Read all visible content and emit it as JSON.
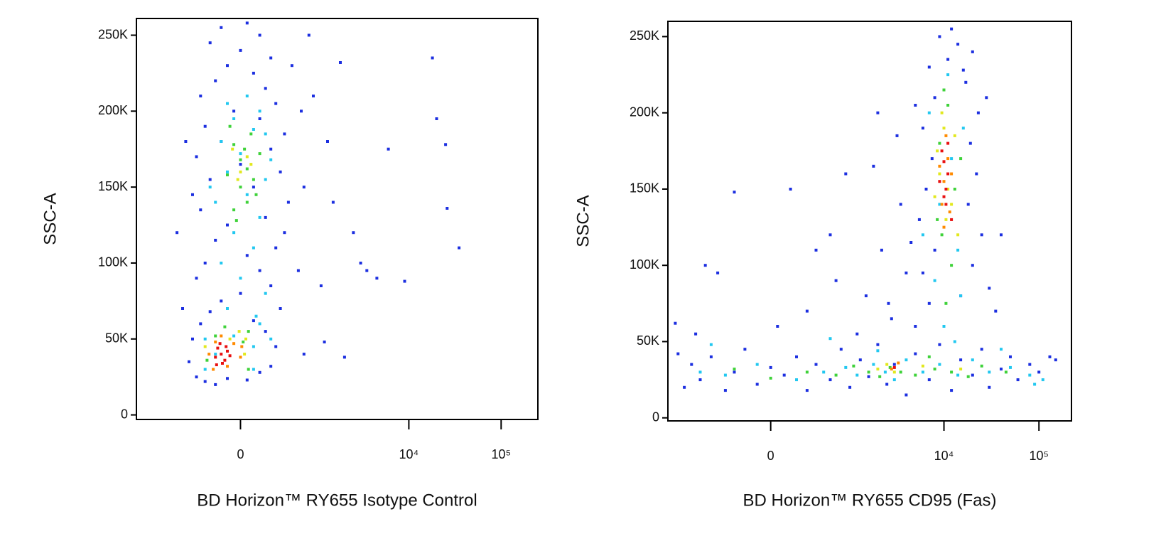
{
  "chart_data": [
    {
      "type": "scatter",
      "xscale": "biex",
      "x_label": "BD Horizon™ RY655 Isotype Control",
      "y_label": "SSC-A",
      "xlim": [
        -2000,
        250000
      ],
      "ylim": [
        -3000,
        261000
      ],
      "xticks": [
        0,
        {
          "value": 10000,
          "label": "10⁴"
        },
        {
          "value": 100000,
          "label": "10⁵"
        }
      ],
      "yticks": [
        0,
        {
          "value": 50000,
          "label": "50K"
        },
        {
          "value": 100000,
          "label": "100K"
        },
        {
          "value": 150000,
          "label": "150K"
        },
        {
          "value": 200000,
          "label": "200K"
        },
        {
          "value": 250000,
          "label": "250K"
        }
      ],
      "series": [
        {
          "color": "#1c2fe0",
          "x": [
            -400,
            -300,
            -200,
            -100,
            50,
            150,
            250,
            -500,
            300,
            -450,
            200,
            -350,
            100,
            -250,
            350,
            -150,
            0,
            250,
            -400,
            150,
            -300,
            50,
            300,
            -200,
            400,
            -100,
            200,
            -350,
            450,
            -450,
            100,
            -250,
            350,
            0,
            -400,
            250,
            -150,
            400,
            -300,
            150,
            -50,
            300,
            -350,
            200,
            -200,
            100,
            -100,
            250,
            0,
            -250,
            150,
            -150,
            50,
            -600,
            600,
            -700,
            700,
            -550,
            650,
            500,
            1100,
            1500,
            2500,
            3000,
            3500,
            4500,
            6000,
            9000,
            18000,
            20000,
            25000,
            26000,
            35000,
            1200,
            2000,
            800,
            1800,
            900,
            1300,
            700
          ],
          "values": [
            25000,
            22000,
            20000,
            24000,
            23000,
            28000,
            32000,
            35000,
            45000,
            50000,
            55000,
            60000,
            62000,
            68000,
            70000,
            75000,
            80000,
            85000,
            90000,
            95000,
            100000,
            105000,
            110000,
            115000,
            120000,
            125000,
            130000,
            135000,
            140000,
            145000,
            150000,
            155000,
            160000,
            165000,
            170000,
            175000,
            180000,
            185000,
            190000,
            195000,
            200000,
            205000,
            210000,
            215000,
            220000,
            225000,
            230000,
            235000,
            240000,
            245000,
            250000,
            255000,
            258000,
            70000,
            95000,
            120000,
            150000,
            180000,
            200000,
            230000,
            85000,
            140000,
            120000,
            100000,
            95000,
            90000,
            175000,
            88000,
            235000,
            195000,
            178000,
            136000,
            110000,
            48000,
            38000,
            250000,
            232000,
            210000,
            180000,
            40000
          ]
        },
        {
          "color": "#22c8f0",
          "x": [
            -200,
            100,
            -50,
            150,
            -100,
            200,
            0,
            -150,
            100,
            -50,
            150,
            -200,
            50,
            200,
            -100,
            250,
            0,
            -150,
            100,
            -50,
            150,
            -100,
            50,
            200,
            -250,
            120,
            -300,
            250,
            -300,
            100
          ],
          "values": [
            40000,
            45000,
            52000,
            60000,
            70000,
            80000,
            90000,
            100000,
            110000,
            120000,
            130000,
            140000,
            145000,
            155000,
            160000,
            168000,
            172000,
            180000,
            188000,
            195000,
            200000,
            205000,
            210000,
            185000,
            150000,
            65000,
            50000,
            50000,
            30000,
            30000
          ]
        },
        {
          "color": "#3fd23a",
          "x": [
            -50,
            50,
            0,
            100,
            -100,
            50,
            0,
            150,
            -50,
            80,
            -120,
            60,
            -200,
            20,
            -80,
            120,
            -30,
            30,
            -280,
            60
          ],
          "values": [
            135000,
            140000,
            150000,
            155000,
            158000,
            162000,
            168000,
            172000,
            178000,
            185000,
            58000,
            55000,
            52000,
            48000,
            190000,
            145000,
            128000,
            175000,
            36000,
            30000
          ]
        },
        {
          "color": "#e2e81e",
          "x": [
            0,
            50,
            -20,
            80,
            -80,
            -10,
            40,
            -300,
            30,
            -60
          ],
          "values": [
            160000,
            170000,
            155000,
            165000,
            50000,
            55000,
            50000,
            45000,
            40000,
            175000
          ]
        },
        {
          "color": "#ff8a00",
          "x": [
            -200,
            -50,
            0,
            -260,
            -100,
            10,
            -150,
            -220
          ],
          "values": [
            48000,
            47000,
            38000,
            40000,
            32000,
            45000,
            52000,
            30000
          ]
        },
        {
          "color": "#e81010",
          "x": [
            -150,
            -120,
            -180,
            -100,
            -200,
            -140,
            -80,
            -160,
            -110,
            -190
          ],
          "values": [
            40000,
            36000,
            44000,
            42000,
            38000,
            34000,
            39000,
            47000,
            45000,
            33000
          ]
        }
      ]
    },
    {
      "type": "scatter",
      "xscale": "biex",
      "x_label": "BD Horizon™ RY655 CD95 (Fas)",
      "y_label": "SSC-A",
      "xlim": [
        -1800,
        220000
      ],
      "ylim": [
        -2000,
        260000
      ],
      "xticks": [
        0,
        {
          "value": 10000,
          "label": "10⁴"
        },
        {
          "value": 100000,
          "label": "10⁵"
        }
      ],
      "yticks": [
        0,
        {
          "value": 50000,
          "label": "50K"
        },
        {
          "value": 100000,
          "label": "100K"
        },
        {
          "value": 150000,
          "label": "150K"
        },
        {
          "value": 200000,
          "label": "200K"
        },
        {
          "value": 250000,
          "label": "250K"
        }
      ],
      "series": [
        {
          "color": "#1c2fe0",
          "x": [
            -1200,
            -1000,
            -800,
            -600,
            -400,
            -300,
            -200,
            -100,
            0,
            100,
            200,
            300,
            400,
            600,
            800,
            1000,
            1300,
            1600,
            2000,
            2500,
            3000,
            4000,
            5000,
            7000,
            9000,
            12000,
            15000,
            20000,
            25000,
            30000,
            40000,
            50000,
            60000,
            80000,
            100000,
            130000,
            150000,
            -1400,
            -1500,
            -900,
            5000,
            7000,
            15000,
            6000,
            20000,
            8000,
            25000,
            5500,
            18000,
            6500,
            22000,
            7500,
            19000,
            6000,
            23000,
            8000,
            17000,
            7000,
            20000,
            9000,
            12000,
            14000,
            30000,
            4500,
            35000,
            28000,
            40000,
            11000,
            16000,
            5000,
            -700,
            -500,
            150,
            300,
            600,
            900,
            1500,
            2000,
            2800,
            3500,
            1200,
            400,
            700,
            2200,
            3200,
            -300,
            50,
            1800,
            4000,
            2600
          ],
          "values": [
            20000,
            35000,
            25000,
            40000,
            18000,
            30000,
            45000,
            22000,
            33000,
            28000,
            40000,
            18000,
            35000,
            25000,
            45000,
            20000,
            38000,
            27000,
            48000,
            22000,
            35000,
            15000,
            42000,
            25000,
            48000,
            18000,
            38000,
            28000,
            45000,
            20000,
            32000,
            40000,
            25000,
            35000,
            30000,
            40000,
            38000,
            42000,
            62000,
            55000,
            60000,
            75000,
            80000,
            95000,
            100000,
            110000,
            120000,
            130000,
            140000,
            150000,
            160000,
            170000,
            180000,
            190000,
            200000,
            210000,
            220000,
            230000,
            240000,
            250000,
            255000,
            245000,
            85000,
            115000,
            70000,
            210000,
            120000,
            235000,
            228000,
            205000,
            100000,
            95000,
            150000,
            70000,
            120000,
            160000,
            80000,
            200000,
            65000,
            140000,
            55000,
            110000,
            90000,
            110000,
            185000,
            148000,
            60000,
            165000,
            95000,
            75000
          ]
        },
        {
          "color": "#22c8f0",
          "x": [
            -800,
            -400,
            -100,
            200,
            500,
            900,
            1200,
            1800,
            2400,
            3000,
            4000,
            6000,
            9000,
            14000,
            20000,
            30000,
            50000,
            80000,
            110000,
            10000,
            8000,
            14000,
            9000,
            12000,
            7000,
            11000,
            16000,
            15000,
            6000,
            -600,
            600,
            2000,
            13000,
            40000,
            90000
          ],
          "values": [
            30000,
            28000,
            35000,
            25000,
            30000,
            33000,
            28000,
            35000,
            30000,
            25000,
            38000,
            30000,
            35000,
            28000,
            38000,
            30000,
            33000,
            28000,
            25000,
            60000,
            90000,
            110000,
            140000,
            170000,
            200000,
            225000,
            190000,
            80000,
            120000,
            48000,
            52000,
            44000,
            50000,
            45000,
            22000
          ]
        },
        {
          "color": "#3fd23a",
          "x": [
            -300,
            0,
            300,
            700,
            1100,
            1600,
            2100,
            2700,
            3500,
            5000,
            8000,
            12000,
            18000,
            25000,
            45000,
            9000,
            11000,
            10000,
            13000,
            8500,
            12000,
            15000,
            9500,
            10500,
            7000
          ],
          "values": [
            32000,
            26000,
            30000,
            28000,
            34000,
            30000,
            27000,
            33000,
            30000,
            28000,
            32000,
            30000,
            27000,
            34000,
            30000,
            180000,
            205000,
            215000,
            150000,
            130000,
            100000,
            170000,
            120000,
            75000,
            40000
          ]
        },
        {
          "color": "#e2e81e",
          "x": [
            2000,
            3000,
            2500,
            9000,
            11000,
            10000,
            12000,
            8500,
            10500,
            13000,
            9500,
            14000,
            8000,
            6000,
            15000
          ],
          "values": [
            32000,
            30000,
            35000,
            160000,
            150000,
            190000,
            140000,
            175000,
            130000,
            185000,
            200000,
            120000,
            145000,
            34000,
            32000
          ]
        },
        {
          "color": "#ff8a00",
          "x": [
            10000,
            11000,
            9500,
            12000,
            10500,
            9000,
            11500,
            2800,
            3300,
            10000
          ],
          "values": [
            155000,
            170000,
            140000,
            160000,
            185000,
            165000,
            135000,
            32000,
            36000,
            125000
          ]
        },
        {
          "color": "#e81010",
          "x": [
            10000,
            11000,
            9500,
            10500,
            12000,
            9000,
            11000,
            10000,
            3000,
            10500
          ],
          "values": [
            145000,
            160000,
            175000,
            150000,
            130000,
            155000,
            180000,
            168000,
            33000,
            140000
          ]
        }
      ]
    }
  ]
}
